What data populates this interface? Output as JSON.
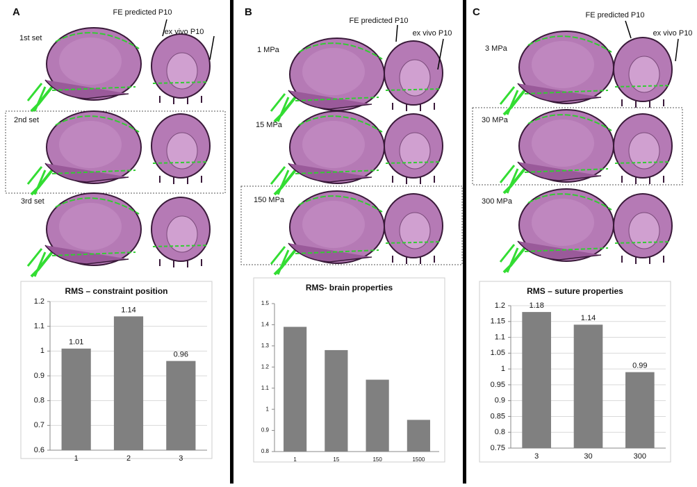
{
  "panels": [
    {
      "label": "A",
      "fe_label": "FE predicted P10",
      "ex_label": "ex vivo P10",
      "rows": [
        "1st set",
        "2nd set",
        "3rd set"
      ]
    },
    {
      "label": "B",
      "fe_label": "FE predicted P10",
      "ex_label": "ex vivo P10",
      "rows": [
        "1 MPa",
        "15 MPa",
        "150 MPa"
      ]
    },
    {
      "label": "C",
      "fe_label": "FE predicted P10",
      "ex_label": "ex vivo P10",
      "rows": [
        "3 MPa",
        "30 MPa",
        "300 MPa"
      ]
    }
  ],
  "chart_data": [
    {
      "type": "bar",
      "title": "RMS – constraint position",
      "categories": [
        "1",
        "2",
        "3"
      ],
      "values": [
        1.01,
        1.14,
        0.96
      ],
      "value_labels": [
        "1.01",
        "1.14",
        "0.96"
      ],
      "color": "#808080",
      "ylim": [
        0.6,
        1.2
      ],
      "yticks": [
        0.6,
        0.7,
        0.8,
        0.9,
        1,
        1.1,
        1.2
      ],
      "grid": true
    },
    {
      "type": "bar",
      "title": "RMS- brain properties",
      "categories": [
        "1",
        "15",
        "150",
        "1500"
      ],
      "values": [
        1.39,
        1.28,
        1.14,
        0.95
      ],
      "color": "#808080",
      "ylim": [
        0.8,
        1.5
      ],
      "yticks": [
        0.8,
        0.9,
        1,
        1.1,
        1.2,
        1.3,
        1.4,
        1.5
      ],
      "grid": false
    },
    {
      "type": "bar",
      "title": "RMS – suture properties",
      "categories": [
        "3",
        "30",
        "300"
      ],
      "values": [
        1.18,
        1.14,
        0.99
      ],
      "value_labels": [
        "1.18",
        "1.14",
        "0.99"
      ],
      "color": "#808080",
      "ylim": [
        0.75,
        1.2
      ],
      "yticks": [
        0.75,
        0.8,
        0.85,
        0.9,
        0.95,
        1,
        1.05,
        1.1,
        1.15,
        1.2
      ],
      "grid": true
    }
  ]
}
